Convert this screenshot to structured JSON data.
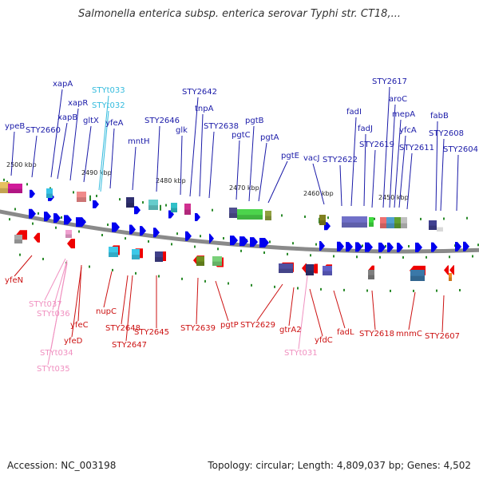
{
  "title": "Salmonella enterica subsp. enterica serovar Typhi str. CT18,...",
  "footer": {
    "accession": "Accession: NC_003198",
    "summary": "Topology: circular; Length: 4,809,037 bp; Genes: 4,502"
  },
  "colors": {
    "forward_label": "#1a1aa8",
    "reverse_label": "#cc1111",
    "trna_forward": "#33bbdd",
    "trna_reverse": "#f090c0",
    "backbone": "#8a8a8a",
    "tick": "#2a8a2a",
    "forward_gene": "#0000ee",
    "reverse_gene": "#ee0000"
  },
  "scale_labels": [
    "2500 kbp",
    "2490 kbp",
    "2480 kbp",
    "2470 kbp",
    "2460 kbp",
    "2450 kbp"
  ],
  "top_labels": [
    "ypeB",
    "STY2660",
    "xapA",
    "xapB",
    "xapR",
    "gltX",
    "STYt033",
    "STYt032",
    "yfeA",
    "mntH",
    "STY2646",
    "glk",
    "STY2642",
    "tnpA",
    "STY2638",
    "pgtC",
    "pgtB",
    "pgtA",
    "pgtE",
    "vacJ",
    "STY2622",
    "fadI",
    "fadJ",
    "STY2619",
    "STY2617",
    "aroC",
    "mepA",
    "yfcA",
    "STY2611",
    "fabB",
    "STY2608",
    "STY2604"
  ],
  "bottom_labels": [
    "yfeN",
    "STYt037",
    "STYt036",
    "yfeC",
    "yfeD",
    "STYt034",
    "STYt035",
    "nupC",
    "STY2648",
    "STY2647",
    "STY2645",
    "STY2639",
    "pgtP",
    "STY2629",
    "gtrA2",
    "STYt031",
    "yfdC",
    "fadL",
    "STY2618",
    "mnmC",
    "STY2607"
  ]
}
